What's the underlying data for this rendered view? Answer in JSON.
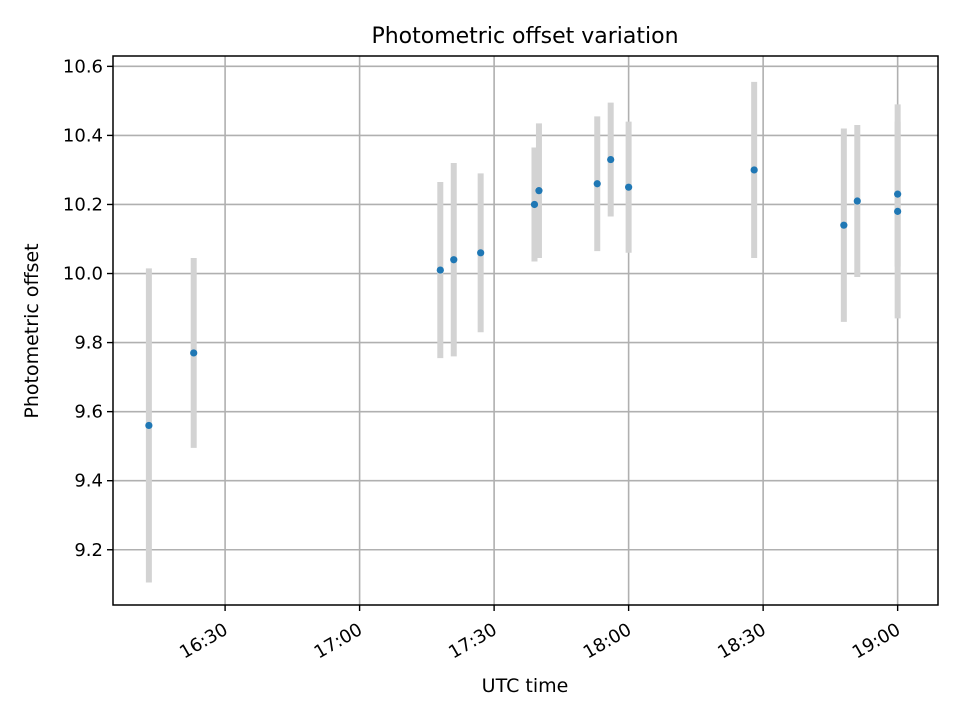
{
  "chart_data": {
    "type": "scatter",
    "title": "Photometric offset variation",
    "xlabel": "UTC time",
    "ylabel": "Photometric offset",
    "x_ticks": [
      "16:30",
      "17:00",
      "17:30",
      "18:00",
      "18:30",
      "19:00"
    ],
    "y_ticks": [
      9.2,
      9.4,
      9.6,
      9.8,
      10.0,
      10.2,
      10.4,
      10.6
    ],
    "y_tick_labels": [
      "9.2",
      "9.4",
      "9.6",
      "9.8",
      "10.0",
      "10.2",
      "10.4",
      "10.6"
    ],
    "xlim": [
      "16:05",
      "19:09"
    ],
    "ylim": [
      9.04,
      10.63
    ],
    "grid": true,
    "colors": {
      "marker": "#1f77b4",
      "errorbar": "#d3d3d3",
      "grid": "#b0b0b0"
    },
    "points": [
      {
        "x": "16:13",
        "y": 9.56,
        "err": 0.455
      },
      {
        "x": "16:23",
        "y": 9.77,
        "err": 0.275
      },
      {
        "x": "17:18",
        "y": 10.01,
        "err": 0.255
      },
      {
        "x": "17:21",
        "y": 10.04,
        "err": 0.28
      },
      {
        "x": "17:27",
        "y": 10.06,
        "err": 0.23
      },
      {
        "x": "17:39",
        "y": 10.2,
        "err": 0.165
      },
      {
        "x": "17:40",
        "y": 10.24,
        "err": 0.195
      },
      {
        "x": "17:53",
        "y": 10.26,
        "err": 0.195
      },
      {
        "x": "17:56",
        "y": 10.33,
        "err": 0.165
      },
      {
        "x": "18:00",
        "y": 10.25,
        "err": 0.19
      },
      {
        "x": "18:28",
        "y": 10.3,
        "err": 0.255
      },
      {
        "x": "18:48",
        "y": 10.14,
        "err": 0.28
      },
      {
        "x": "18:51",
        "y": 10.21,
        "err": 0.22
      },
      {
        "x": "19:00",
        "y": 10.23,
        "err": 0.21
      },
      {
        "x": "19:00",
        "y": 10.18,
        "err": 0.31
      }
    ]
  }
}
